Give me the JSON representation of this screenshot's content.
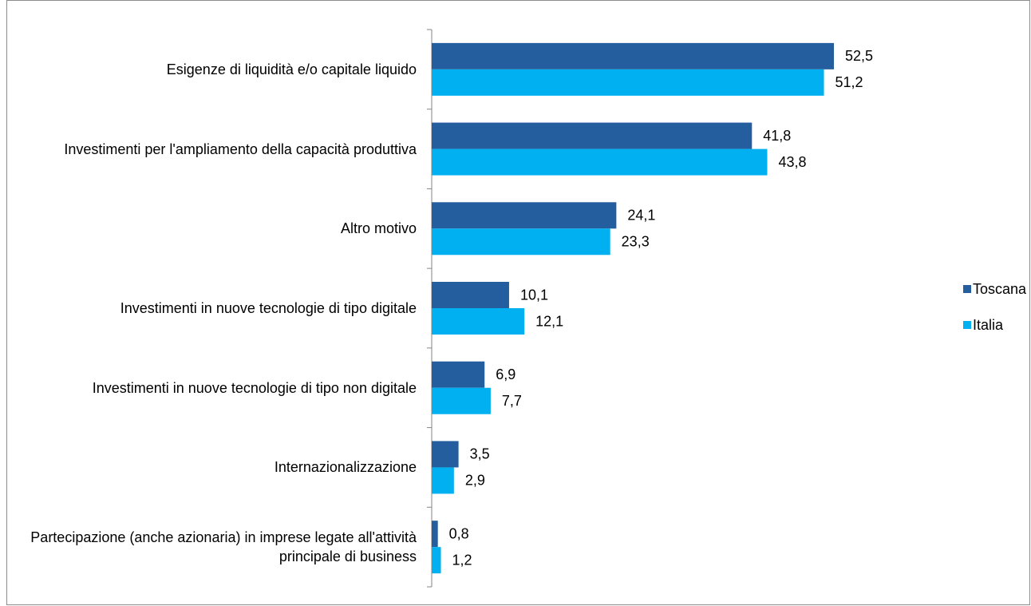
{
  "chart_data": {
    "type": "bar",
    "orientation": "horizontal",
    "categories": [
      "Esigenze di liquidità  e/o capitale liquido",
      "Investimenti per l'ampliamento della capacità produttiva",
      "Altro motivo",
      "Investimenti in nuove tecnologie di tipo digitale",
      "Investimenti in nuove tecnologie di tipo non digitale",
      "Internazionalizzazione",
      "Partecipazione (anche azionaria) in imprese legate all'attività  principale di business"
    ],
    "series": [
      {
        "name": "Toscana",
        "color": "#255e9e",
        "values": [
          52.5,
          41.8,
          24.1,
          10.1,
          6.9,
          3.5,
          0.8
        ],
        "value_labels": [
          "52,5",
          "41,8",
          "24,1",
          "10,1",
          "6,9",
          "3,5",
          "0,8"
        ]
      },
      {
        "name": "Italia",
        "color": "#00b0f0",
        "values": [
          51.2,
          43.8,
          23.3,
          12.1,
          7.7,
          2.9,
          1.2
        ],
        "value_labels": [
          "51,2",
          "43,8",
          "23,3",
          "12,1",
          "7,7",
          "2,9",
          "1,2"
        ]
      }
    ],
    "legend": "right"
  }
}
